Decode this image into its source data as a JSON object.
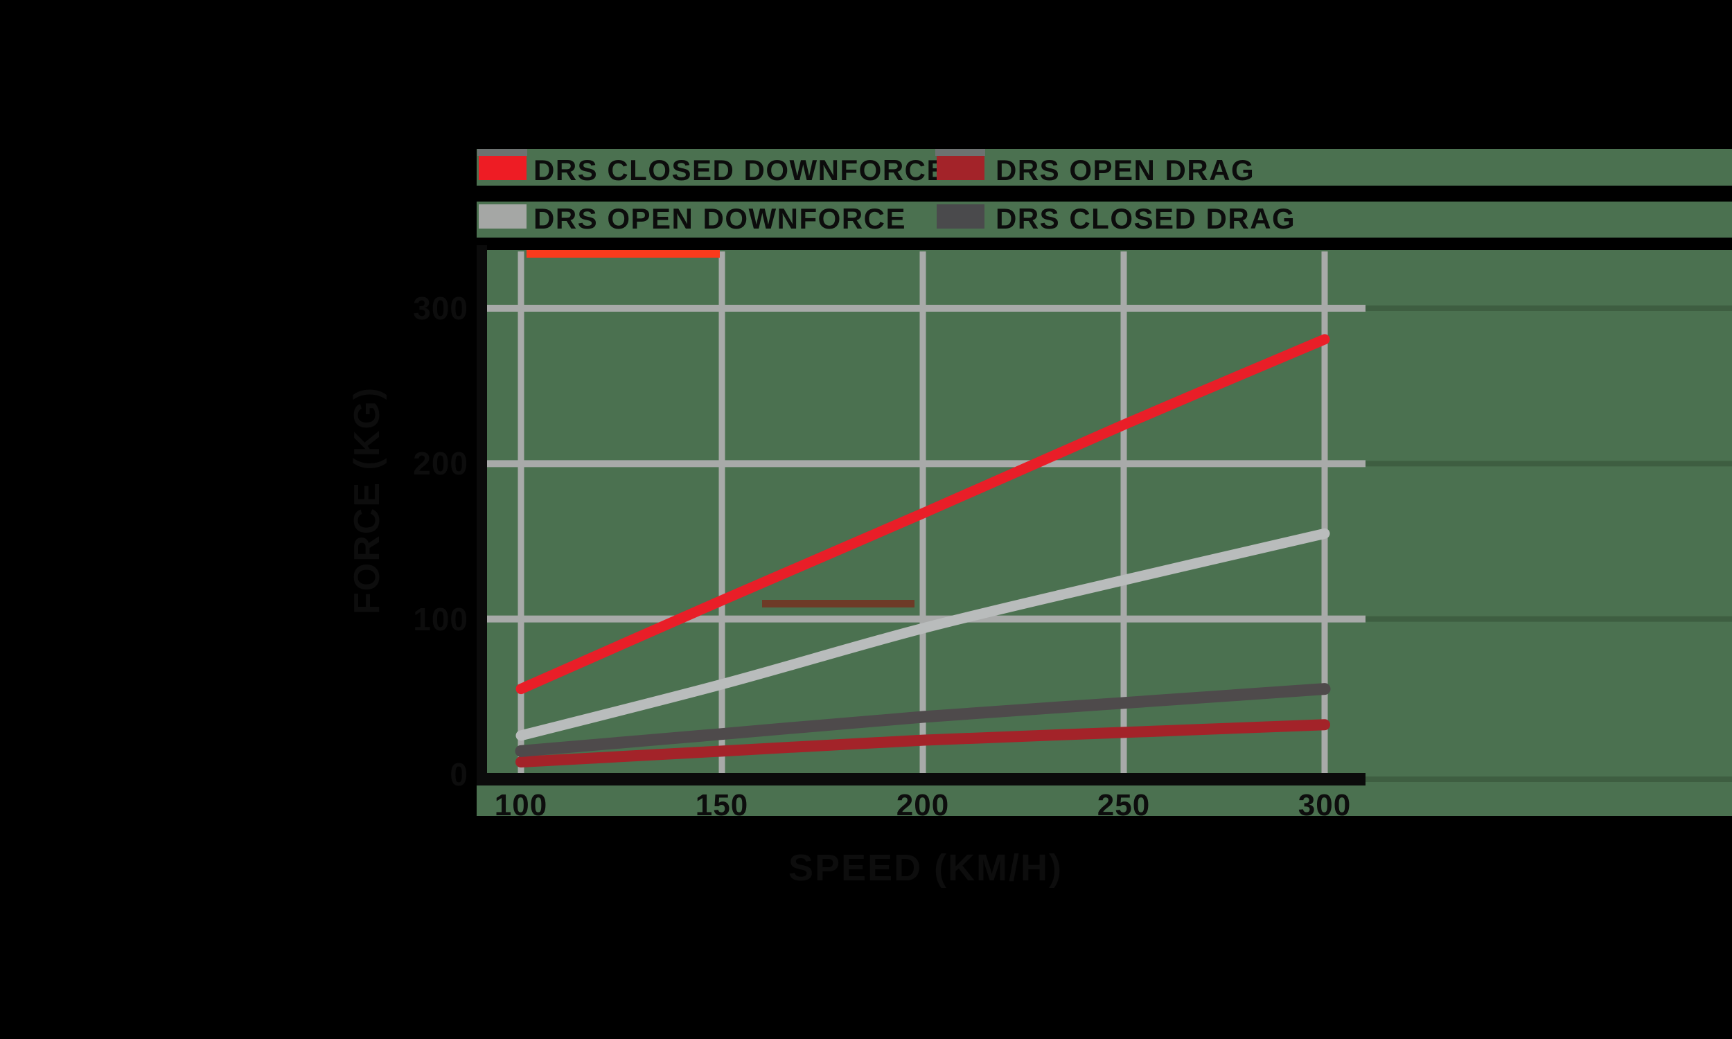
{
  "background": {
    "outer": "#000000",
    "stage": "#4b7150"
  },
  "colors": {
    "gridline": "#a8aaa9",
    "gridline_faint_extension": "#3d5c40",
    "axis": "#0b0b0b",
    "text": "#0d0d0d",
    "stripe": "#000000",
    "red_bar_artifact": "#fa3a1c",
    "brown_bar_artifact": "#6e3a27",
    "swatch_sliver": "#6d7271"
  },
  "legend": {
    "items": [
      {
        "label": "DRS CLOSED DOWNFORCE",
        "swatch": "#ee1c24"
      },
      {
        "label": "DRS OPEN DRAG",
        "swatch": "#a32329"
      },
      {
        "label": "DRS OPEN DOWNFORCE",
        "swatch": "#a5a7a5"
      },
      {
        "label": "DRS CLOSED DRAG",
        "swatch": "#4a4a4c"
      }
    ]
  },
  "chart_data": {
    "type": "line",
    "x": [
      100,
      150,
      200,
      250,
      300
    ],
    "series": [
      {
        "name": "DRS CLOSED DOWNFORCE",
        "color": "#e91e28",
        "values": [
          55,
          112,
          168,
          225,
          280
        ]
      },
      {
        "name": "DRS OPEN DOWNFORCE",
        "color": "#b9bcbc",
        "values": [
          25,
          58,
          94,
          125,
          155
        ]
      },
      {
        "name": "DRS CLOSED DRAG",
        "color": "#4e4a4b",
        "values": [
          15,
          26,
          37,
          46,
          55
        ]
      },
      {
        "name": "DRS OPEN DRAG",
        "color": "#a32329",
        "values": [
          8,
          15,
          22,
          27,
          32
        ]
      }
    ],
    "xlabel": "SPEED (KM/H)",
    "ylabel": "FORCE (KG)",
    "x_ticks": [
      100,
      150,
      200,
      250,
      300
    ],
    "y_ticks": [
      0,
      100,
      200,
      300
    ],
    "xlim": [
      91,
      310
    ],
    "ylim": [
      0,
      338
    ],
    "grid": true,
    "legend_position": "top"
  }
}
